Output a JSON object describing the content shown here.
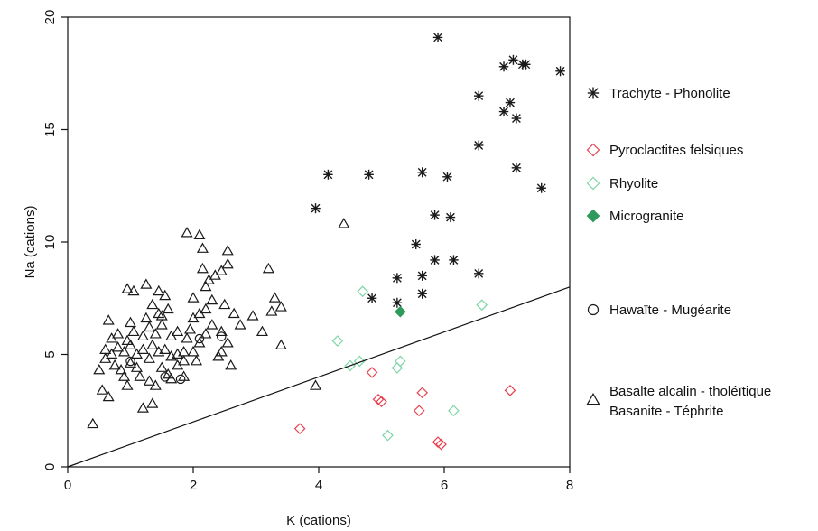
{
  "chart_data": {
    "type": "scatter",
    "xlabel": "K (cations)",
    "ylabel": "Na (cations)",
    "xlim": [
      0,
      8
    ],
    "ylim": [
      0,
      20
    ],
    "xticks": [
      "0",
      "2",
      "4",
      "6",
      "8"
    ],
    "yticks": [
      "0",
      "5",
      "10",
      "15",
      "20"
    ],
    "grid": false,
    "legend_position": "right",
    "reference_line": {
      "x": [
        0,
        8
      ],
      "y": [
        0,
        8
      ]
    },
    "series": [
      {
        "name": "Trachyte - Phonolite",
        "marker": "asterisk",
        "color": "#1a1a1a",
        "points": [
          [
            5.9,
            19.1
          ],
          [
            7.1,
            18.1
          ],
          [
            7.25,
            17.9
          ],
          [
            7.3,
            17.9
          ],
          [
            6.95,
            17.8
          ],
          [
            7.85,
            17.6
          ],
          [
            6.55,
            16.5
          ],
          [
            7.05,
            16.2
          ],
          [
            6.95,
            15.8
          ],
          [
            7.15,
            15.5
          ],
          [
            6.55,
            14.3
          ],
          [
            7.15,
            13.3
          ],
          [
            7.55,
            12.4
          ],
          [
            4.15,
            13.0
          ],
          [
            4.8,
            13.0
          ],
          [
            5.65,
            13.1
          ],
          [
            6.05,
            12.9
          ],
          [
            3.95,
            11.5
          ],
          [
            5.85,
            11.2
          ],
          [
            6.1,
            11.1
          ],
          [
            5.55,
            9.9
          ],
          [
            5.85,
            9.2
          ],
          [
            6.15,
            9.2
          ],
          [
            5.25,
            8.4
          ],
          [
            5.65,
            8.5
          ],
          [
            6.55,
            8.6
          ],
          [
            5.65,
            7.7
          ],
          [
            4.85,
            7.5
          ],
          [
            5.25,
            7.3
          ]
        ]
      },
      {
        "name": "Pyroclactites felsiques",
        "marker": "diamond",
        "color": "#e8414f",
        "points": [
          [
            4.95,
            3.0
          ],
          [
            5.0,
            2.9
          ],
          [
            4.85,
            4.2
          ],
          [
            5.65,
            3.3
          ],
          [
            5.6,
            2.5
          ],
          [
            3.7,
            1.7
          ],
          [
            5.9,
            1.1
          ],
          [
            5.95,
            1.0
          ],
          [
            7.05,
            3.4
          ]
        ]
      },
      {
        "name": "Rhyolite",
        "marker": "diamond",
        "color": "#7bd6a4",
        "points": [
          [
            4.3,
            5.6
          ],
          [
            4.5,
            4.5
          ],
          [
            4.65,
            4.7
          ],
          [
            5.25,
            4.4
          ],
          [
            5.3,
            4.7
          ],
          [
            5.1,
            1.4
          ],
          [
            6.15,
            2.5
          ],
          [
            6.6,
            7.2
          ],
          [
            4.7,
            7.8
          ]
        ]
      },
      {
        "name": "Microgranite",
        "marker": "diamond-filled",
        "color": "#2e9a5c",
        "points": [
          [
            5.3,
            6.9
          ]
        ]
      },
      {
        "name": "Hawaïte - Mugéarite",
        "marker": "circle",
        "color": "#1a1a1a",
        "points": [
          [
            1.0,
            4.7
          ],
          [
            1.55,
            4.0
          ],
          [
            2.1,
            5.7
          ],
          [
            2.45,
            5.8
          ],
          [
            1.8,
            3.9
          ]
        ]
      },
      {
        "name": "Basalte alcalin - tholéïtique\nBasanite - Téphrite",
        "marker": "triangle",
        "color": "#1a1a1a",
        "points": [
          [
            0.4,
            1.9
          ],
          [
            1.2,
            2.6
          ],
          [
            1.35,
            2.8
          ],
          [
            0.55,
            3.4
          ],
          [
            0.65,
            3.1
          ],
          [
            0.95,
            3.6
          ],
          [
            0.5,
            4.3
          ],
          [
            0.6,
            4.8
          ],
          [
            0.75,
            4.5
          ],
          [
            0.85,
            4.3
          ],
          [
            0.9,
            4.0
          ],
          [
            1.0,
            4.6
          ],
          [
            1.1,
            4.4
          ],
          [
            1.15,
            4.0
          ],
          [
            1.3,
            3.8
          ],
          [
            1.4,
            3.6
          ],
          [
            1.5,
            4.4
          ],
          [
            1.6,
            4.1
          ],
          [
            1.65,
            3.9
          ],
          [
            1.75,
            4.5
          ],
          [
            1.85,
            4.0
          ],
          [
            0.6,
            5.2
          ],
          [
            0.7,
            5.0
          ],
          [
            0.8,
            5.3
          ],
          [
            0.9,
            5.1
          ],
          [
            1.0,
            5.4
          ],
          [
            1.1,
            5.0
          ],
          [
            1.2,
            5.2
          ],
          [
            1.3,
            4.8
          ],
          [
            1.35,
            5.4
          ],
          [
            1.45,
            5.1
          ],
          [
            1.55,
            5.2
          ],
          [
            1.65,
            4.9
          ],
          [
            1.75,
            5.0
          ],
          [
            1.85,
            5.1
          ],
          [
            0.7,
            5.7
          ],
          [
            0.8,
            5.9
          ],
          [
            0.95,
            5.6
          ],
          [
            1.05,
            6.0
          ],
          [
            1.2,
            5.8
          ],
          [
            1.3,
            6.2
          ],
          [
            1.4,
            5.9
          ],
          [
            1.5,
            6.3
          ],
          [
            1.65,
            5.8
          ],
          [
            1.75,
            6.0
          ],
          [
            1.9,
            5.7
          ],
          [
            0.65,
            6.5
          ],
          [
            1.0,
            6.4
          ],
          [
            1.25,
            6.6
          ],
          [
            1.45,
            6.8
          ],
          [
            1.6,
            7.0
          ],
          [
            0.95,
            7.9
          ],
          [
            1.25,
            8.1
          ],
          [
            1.45,
            7.8
          ],
          [
            1.55,
            7.6
          ],
          [
            1.35,
            7.2
          ],
          [
            2.0,
            5.1
          ],
          [
            2.1,
            5.5
          ],
          [
            2.2,
            5.9
          ],
          [
            2.3,
            6.3
          ],
          [
            2.45,
            6.0
          ],
          [
            2.55,
            5.5
          ],
          [
            2.1,
            6.8
          ],
          [
            2.2,
            7.0
          ],
          [
            2.3,
            7.4
          ],
          [
            2.5,
            7.2
          ],
          [
            2.65,
            6.8
          ],
          [
            2.0,
            7.5
          ],
          [
            2.2,
            8.0
          ],
          [
            2.35,
            8.5
          ],
          [
            2.45,
            8.7
          ],
          [
            2.15,
            8.8
          ],
          [
            2.55,
            9.0
          ],
          [
            2.55,
            9.6
          ],
          [
            1.9,
            10.4
          ],
          [
            2.1,
            10.3
          ],
          [
            2.15,
            9.7
          ],
          [
            2.4,
            4.9
          ],
          [
            2.45,
            5.1
          ],
          [
            2.6,
            4.5
          ],
          [
            2.95,
            6.7
          ],
          [
            3.1,
            6.0
          ],
          [
            3.25,
            6.9
          ],
          [
            3.3,
            7.5
          ],
          [
            3.4,
            7.1
          ],
          [
            3.2,
            8.8
          ],
          [
            3.4,
            5.4
          ],
          [
            2.0,
            6.6
          ],
          [
            1.95,
            6.1
          ],
          [
            2.05,
            4.7
          ],
          [
            1.85,
            4.7
          ],
          [
            1.05,
            7.8
          ],
          [
            1.5,
            6.7
          ],
          [
            2.25,
            8.3
          ],
          [
            3.95,
            3.6
          ],
          [
            4.4,
            10.8
          ],
          [
            2.75,
            6.3
          ]
        ]
      }
    ]
  }
}
